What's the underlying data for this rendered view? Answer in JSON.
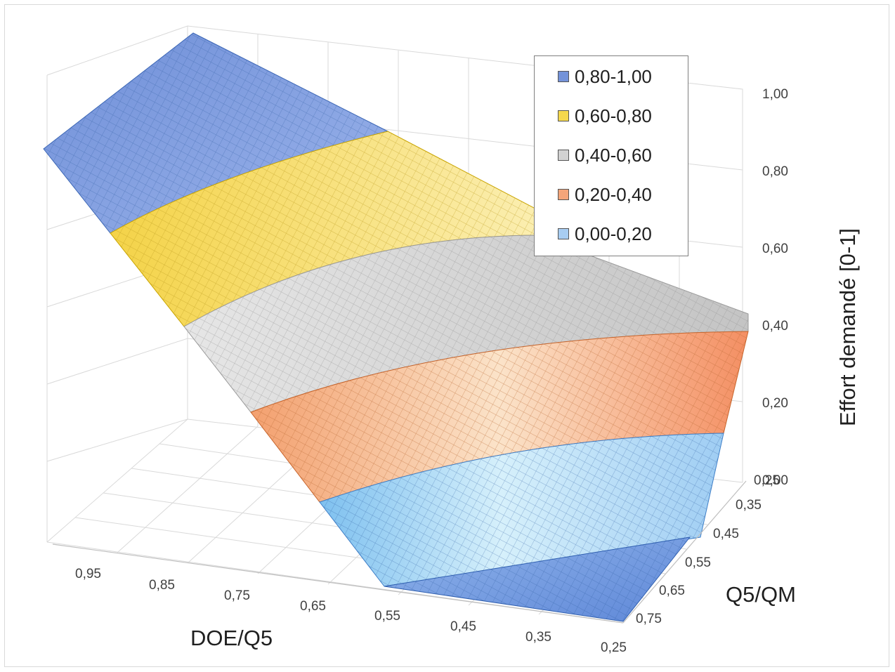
{
  "chart_data": {
    "type": "surface",
    "title": "",
    "x_axis": {
      "label": "DOE/Q5",
      "ticks": [
        "0,95",
        "0,85",
        "0,75",
        "0,65",
        "0,55",
        "0,45",
        "0,35",
        "0,25"
      ]
    },
    "depth_axis": {
      "label": "Q5/QM",
      "ticks": [
        "0,25",
        "0,35",
        "0,45",
        "0,55",
        "0,65",
        "0,75"
      ]
    },
    "z_axis": {
      "label": "Effort demandé [0-1]",
      "ticks": [
        "0,00",
        "0,20",
        "0,40",
        "0,60",
        "0,80",
        "1,00"
      ],
      "range": [
        0,
        1
      ]
    },
    "legend": {
      "placement": "top-right",
      "entries": [
        {
          "label": "0,80-1,00",
          "color": "#7493d9"
        },
        {
          "label": "0,60-0,80",
          "color": "#f5d84d"
        },
        {
          "label": "0,40-0,60",
          "color": "#d2d2d2"
        },
        {
          "label": "0,20-0,40",
          "color": "#f4a57a"
        },
        {
          "label": "0,00-0,20",
          "color": "#a8cdf2"
        }
      ]
    },
    "surface_samples": {
      "note_rows_are_DOE_Q5": [
        0.95,
        0.85,
        0.75,
        0.65,
        0.55,
        0.45,
        0.35,
        0.25
      ],
      "cols_are_Q5_QM": [
        0.25,
        0.75
      ],
      "values": [
        [
          1.0,
          0.82
        ],
        [
          0.9,
          0.7
        ],
        [
          0.72,
          0.55
        ],
        [
          0.55,
          0.4
        ],
        [
          0.38,
          0.25
        ],
        [
          0.2,
          0.13
        ],
        [
          0.0,
          0.0
        ],
        [
          0.0,
          0.0
        ]
      ]
    }
  }
}
